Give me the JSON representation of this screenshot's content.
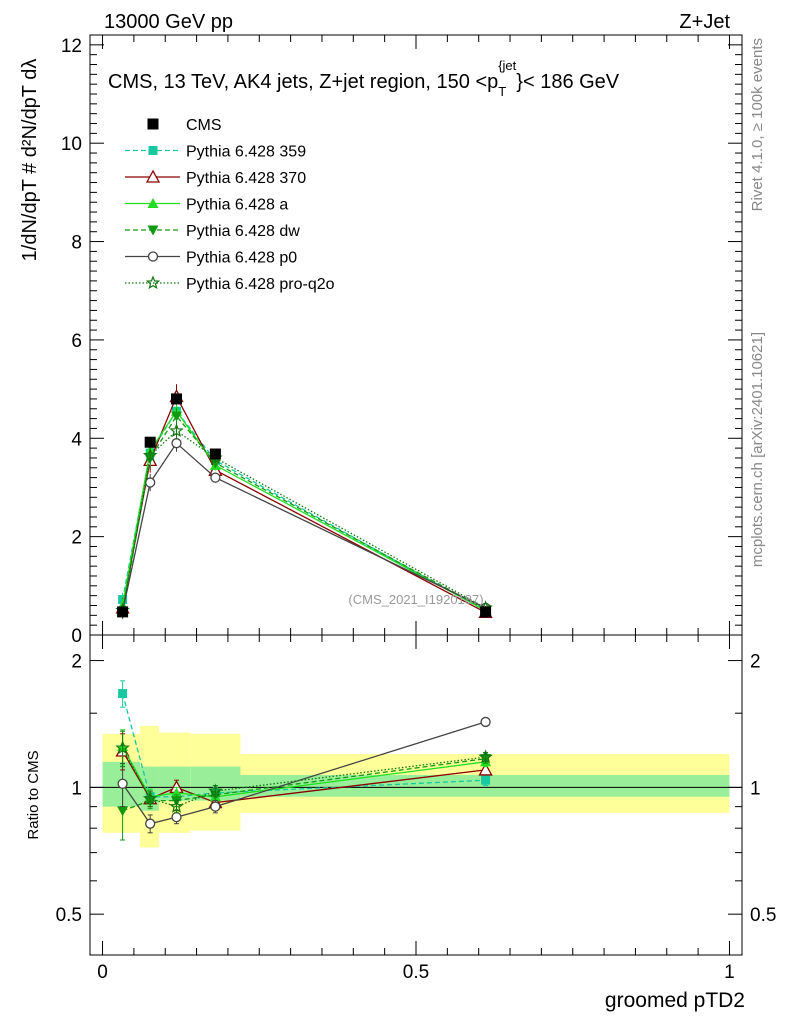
{
  "header": {
    "energy_label": "13000 GeV pp",
    "process_label": "Z+Jet"
  },
  "side_text": {
    "rivet": "Rivet 4.1.0, ≥ 100k events",
    "mcplots": "mcplots.cern.ch [arXiv:2401.10621]"
  },
  "chart_data": {
    "type": "line",
    "title": "CMS, 13 TeV, AK4 jets, Z+jet region, 150 <p_T^{jet}< 186 GeV",
    "title_parts": {
      "main": "CMS, 13 TeV, AK4 jets, Z+jet region, 150 <p",
      "sub": "T",
      "sup": "{jet",
      "tail": "}< 186 GeV"
    },
    "analysis_id": "(CMS_2021_I1920187)",
    "xlabel": "groomed pTD2",
    "ylabel_main": "1/dN/dpT # d²N/dpT dλ",
    "ylabel_ratio": "Ratio to CMS",
    "xlim": [
      -0.02,
      1.02
    ],
    "ylim_main": [
      0,
      12.2
    ],
    "ylim_ratio": [
      0.4,
      2.3
    ],
    "x_ticks": [
      "0",
      "0.5",
      "1"
    ],
    "x_tick_values": [
      0,
      0.5,
      1
    ],
    "y_ticks_main": [
      "0",
      "2",
      "4",
      "6",
      "8",
      "10",
      "12"
    ],
    "y_tick_values_main": [
      0,
      2,
      4,
      6,
      8,
      10,
      12
    ],
    "y_ticks_ratio": [
      "0.5",
      "1",
      "2"
    ],
    "y_tick_values_ratio": [
      0.5,
      1,
      2
    ],
    "bins": [
      [
        0,
        0.06
      ],
      [
        0.06,
        0.09
      ],
      [
        0.09,
        0.14
      ],
      [
        0.14,
        0.22
      ],
      [
        0.22,
        1.0
      ]
    ],
    "x": [
      0.032,
      0.076,
      0.118,
      0.18,
      0.611
    ],
    "band_inner": [
      [
        0.9,
        1.15
      ],
      [
        0.88,
        1.12
      ],
      [
        0.93,
        1.12
      ],
      [
        0.93,
        1.12
      ],
      [
        0.95,
        1.07
      ]
    ],
    "band_outer": [
      [
        0.78,
        1.34
      ],
      [
        0.72,
        1.4
      ],
      [
        0.78,
        1.35
      ],
      [
        0.79,
        1.34
      ],
      [
        0.87,
        1.2
      ]
    ],
    "data": {
      "name": "CMS",
      "values": [
        0.47,
        3.92,
        4.8,
        3.68,
        0.47
      ]
    },
    "series": [
      {
        "name": "Pythia 6.428 359",
        "color": "#17c9a0",
        "dash": "5,3",
        "marker": "square",
        "values": [
          0.72,
          3.7,
          4.55,
          3.55,
          0.49
        ],
        "ratio": [
          1.67,
          0.95,
          0.95,
          0.97,
          1.04
        ],
        "ratio_err": [
          0.12,
          0.04,
          0.03,
          0.03,
          0.03
        ]
      },
      {
        "name": "Pythia 6.428 370",
        "color": "#8b0000",
        "dash": "",
        "marker": "triangle-open",
        "values": [
          0.55,
          3.55,
          4.85,
          3.35,
          0.46
        ],
        "ratio": [
          1.22,
          0.94,
          1.0,
          0.92,
          1.1
        ],
        "ratio_err": [
          0.12,
          0.04,
          0.04,
          0.03,
          0.03
        ]
      },
      {
        "name": "Pythia 6.428 a",
        "color": "#22dd22",
        "dash": "",
        "marker": "triangle",
        "values": [
          0.6,
          3.75,
          4.55,
          3.45,
          0.5
        ],
        "ratio": [
          1.25,
          0.95,
          0.97,
          0.95,
          1.15
        ],
        "ratio_err": [
          0.12,
          0.04,
          0.03,
          0.03,
          0.03
        ]
      },
      {
        "name": "Pythia 6.428 dw",
        "color": "#119911",
        "dash": "5,3",
        "marker": "triangle-down",
        "values": [
          0.46,
          3.6,
          4.45,
          3.5,
          0.52
        ],
        "ratio": [
          0.88,
          0.93,
          0.93,
          0.96,
          1.17
        ],
        "ratio_err": [
          0.13,
          0.04,
          0.03,
          0.03,
          0.03
        ]
      },
      {
        "name": "Pythia 6.428 p0",
        "color": "#444444",
        "dash": "",
        "marker": "circle-open",
        "values": [
          0.48,
          3.1,
          3.9,
          3.2,
          0.55
        ],
        "ratio": [
          1.02,
          0.82,
          0.85,
          0.9,
          1.43
        ],
        "ratio_err": [
          0.12,
          0.04,
          0.03,
          0.03,
          0.03
        ]
      },
      {
        "name": "Pythia 6.428 pro-q2o",
        "color": "#117711",
        "dash": "1.5,2",
        "marker": "star",
        "values": [
          0.5,
          3.65,
          4.15,
          3.6,
          0.55
        ],
        "ratio": [
          1.24,
          0.94,
          0.9,
          0.98,
          1.18
        ],
        "ratio_err": [
          0.12,
          0.04,
          0.03,
          0.03,
          0.03
        ]
      }
    ],
    "main_err": [
      0.2,
      0.25,
      0.25,
      0.15,
      0.06
    ],
    "legend_position": "top-left"
  }
}
